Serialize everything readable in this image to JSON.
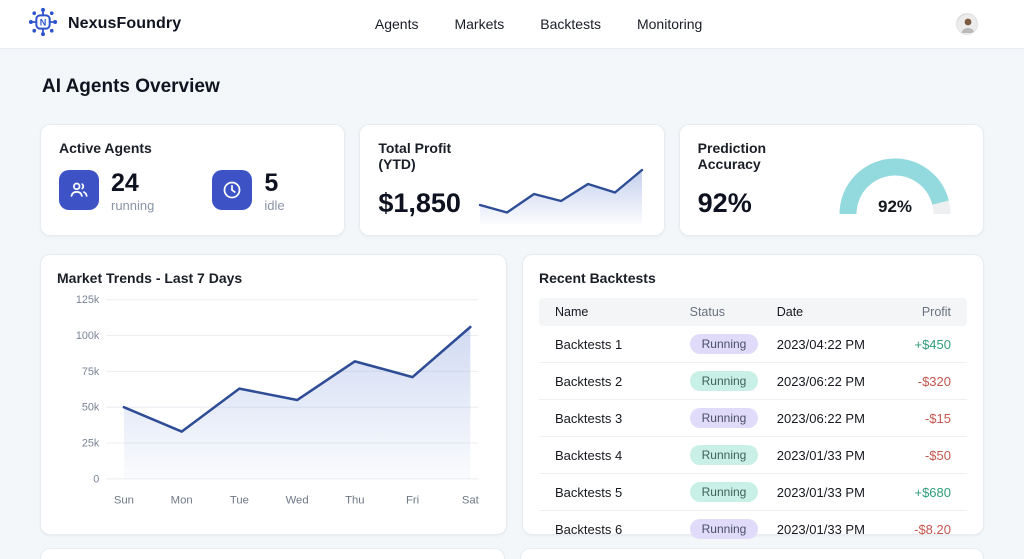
{
  "topbar": {
    "brand": "NexusFoundry",
    "nav": [
      {
        "label": "Agents"
      },
      {
        "label": "Markets"
      },
      {
        "label": "Backtests"
      },
      {
        "label": "Monitoring"
      }
    ]
  },
  "page": {
    "title": "AI Agents Overview"
  },
  "cards": {
    "active_agents": {
      "title": "Active Agents",
      "stats": [
        {
          "value": "24",
          "label": "running",
          "icon": "users-icon"
        },
        {
          "value": "5",
          "label": "idle",
          "icon": "clock-icon"
        }
      ]
    },
    "total_profit": {
      "title": "Total Profit (YTD)",
      "value": "$1,850"
    },
    "prediction_accuracy": {
      "title": "Prediction Accuracy",
      "value": "92%"
    }
  },
  "chart_data": [
    {
      "id": "profit-sparkline",
      "type": "line",
      "title": "Total Profit (YTD) sparkline",
      "values": [
        30,
        15,
        52,
        38,
        72,
        55,
        100
      ],
      "axis": "none",
      "line_color": "#2E4D96"
    },
    {
      "id": "accuracy-gauge",
      "type": "gauge",
      "value": 92,
      "max": 100,
      "label": "92%",
      "color": "#93DADF",
      "track_color": "#EDEFF1"
    },
    {
      "id": "market-trends",
      "type": "line",
      "title": "Market Trends - Last 7 Days",
      "categories": [
        "Sun",
        "Mon",
        "Tue",
        "Wed",
        "Thu",
        "Fri",
        "Sat"
      ],
      "values": [
        50,
        33,
        63,
        55,
        82,
        71,
        106
      ],
      "value_unit": "k",
      "ylim": [
        0,
        125
      ],
      "ytick_labels": [
        "0",
        "25k",
        "50k",
        "75k",
        "100k",
        "125k"
      ],
      "grid": true,
      "legend": "none",
      "line_color": "#2E4D96"
    }
  ],
  "backtests": {
    "title": "Recent Backtests",
    "columns": [
      "Name",
      "Status",
      "Date",
      "Profit"
    ],
    "rows": [
      {
        "name": "Backtests 1",
        "status": "Running",
        "status_variant": "lavender",
        "date": "2023/04:22 PM",
        "profit": "+$450",
        "profit_sign": "positive"
      },
      {
        "name": "Backtests 2",
        "status": "Running",
        "status_variant": "teal",
        "date": "2023/06:22 PM",
        "profit": "-$320",
        "profit_sign": "negative"
      },
      {
        "name": "Backtests 3",
        "status": "Running",
        "status_variant": "lavender",
        "date": "2023/06:22 PM",
        "profit": "-$15",
        "profit_sign": "negative"
      },
      {
        "name": "Backtests 4",
        "status": "Running",
        "status_variant": "teal",
        "date": "2023/01/33 PM",
        "profit": "-$50",
        "profit_sign": "negative"
      },
      {
        "name": "Backtests 5",
        "status": "Running",
        "status_variant": "teal",
        "date": "2023/01/33 PM",
        "profit": "+$680",
        "profit_sign": "positive"
      },
      {
        "name": "Backtests 6",
        "status": "Running",
        "status_variant": "lavender",
        "date": "2023/01/33 PM",
        "profit": "-$8.20",
        "profit_sign": "negative"
      }
    ]
  },
  "colors": {
    "accent_blue": "#3D53C5",
    "line_blue": "#2E4D96",
    "gauge_teal": "#93DADF",
    "profit_green": "#2F9E77",
    "loss_red": "#C4574E",
    "pill_lavender": "#DFDBF8",
    "pill_teal": "#C9F0E6"
  }
}
